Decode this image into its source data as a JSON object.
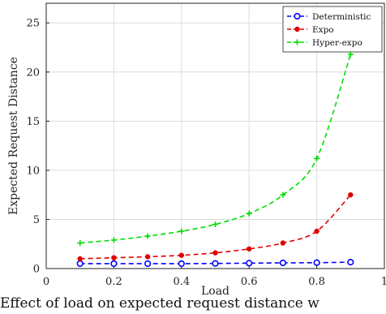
{
  "chart_data": {
    "type": "line",
    "title": "",
    "xlabel": "Load",
    "ylabel": "Expected Request Distance",
    "xlim": [
      0,
      1
    ],
    "ylim": [
      0,
      27
    ],
    "x_ticks": [
      "0",
      "0.2",
      "0.4",
      "0.6",
      "0.8",
      "1"
    ],
    "y_ticks": [
      "0",
      "5",
      "10",
      "15",
      "20",
      "25"
    ],
    "grid": true,
    "legend_position": "top-right",
    "x": [
      0.1,
      0.2,
      0.3,
      0.4,
      0.5,
      0.6,
      0.7,
      0.8,
      0.9
    ],
    "series": [
      {
        "name": "Deterministic",
        "color": "#0000ff",
        "marker": "circle",
        "values": [
          0.5,
          0.5,
          0.5,
          0.5,
          0.52,
          0.55,
          0.58,
          0.6,
          0.65
        ]
      },
      {
        "name": "Expo",
        "color": "#e00000",
        "marker": "dot",
        "values": [
          1.0,
          1.1,
          1.2,
          1.35,
          1.6,
          2.0,
          2.6,
          3.8,
          7.5
        ]
      },
      {
        "name": "Hyper-expo",
        "color": "#00dd00",
        "marker": "plus",
        "values": [
          2.6,
          2.9,
          3.3,
          3.8,
          4.5,
          5.6,
          7.5,
          11.2,
          21.8
        ]
      }
    ]
  },
  "caption": "Effect of load on expected request distance w"
}
